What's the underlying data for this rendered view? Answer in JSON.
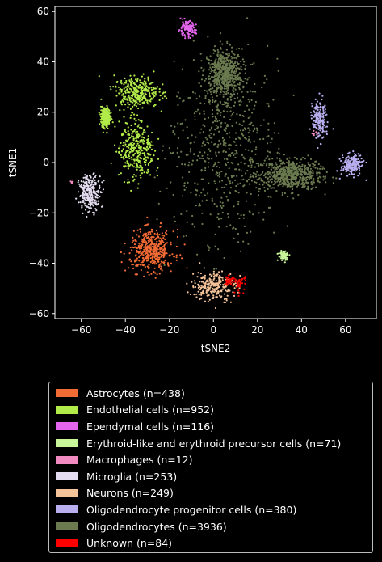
{
  "chart_data": {
    "type": "scatter",
    "xlabel": "tSNE2",
    "ylabel": "tSNE1",
    "xlim": [
      -72,
      74
    ],
    "ylim": [
      -62,
      62
    ],
    "xticks": [
      -60,
      -40,
      -20,
      0,
      20,
      40,
      60
    ],
    "yticks": [
      -60,
      -40,
      -20,
      0,
      20,
      40,
      60
    ],
    "legend_position": "below",
    "series": [
      {
        "name": "Astrocytes (n=438)",
        "color": "#f26b35",
        "n": 438,
        "clusters": [
          {
            "cx": -28,
            "cy": -35,
            "sx": 5,
            "sy": 4
          }
        ]
      },
      {
        "name": "Endothelial cells (n=952)",
        "color": "#b2ec4a",
        "n": 952,
        "clusters": [
          {
            "cx": -35,
            "cy": 5,
            "sx": 4,
            "sy": 6
          },
          {
            "cx": -35,
            "cy": 28,
            "sx": 5,
            "sy": 3
          },
          {
            "cx": -49,
            "cy": 18,
            "sx": 1,
            "sy": 2
          }
        ]
      },
      {
        "name": "Ependymal cells (n=116)",
        "color": "#e566ee",
        "n": 116,
        "clusters": [
          {
            "cx": -12,
            "cy": 53,
            "sx": 2,
            "sy": 1.5
          }
        ]
      },
      {
        "name": "Erythroid-like and erythroid precursor cells (n=71)",
        "color": "#c8f59a",
        "n": 71,
        "clusters": [
          {
            "cx": 32,
            "cy": -37,
            "sx": 1.2,
            "sy": 1
          }
        ]
      },
      {
        "name": "Macrophages (n=12)",
        "color": "#f08ac0",
        "n": 12,
        "clusters": [
          {
            "cx": -64,
            "cy": -8,
            "sx": 0.5,
            "sy": 0.5
          },
          {
            "cx": 46,
            "cy": 12,
            "sx": 1,
            "sy": 1
          }
        ]
      },
      {
        "name": "Microglia (n=253)",
        "color": "#e3dcf0",
        "n": 253,
        "clusters": [
          {
            "cx": -56,
            "cy": -12,
            "sx": 2.5,
            "sy": 3.5
          }
        ]
      },
      {
        "name": "Neurons (n=249)",
        "color": "#f5c399",
        "n": 249,
        "clusters": [
          {
            "cx": 0,
            "cy": -49,
            "sx": 5,
            "sy": 3
          }
        ]
      },
      {
        "name": "Oligodendrocyte progenitor cells (n=380)",
        "color": "#b9aef0",
        "n": 380,
        "clusters": [
          {
            "cx": 48,
            "cy": 17,
            "sx": 1.5,
            "sy": 4
          },
          {
            "cx": 63,
            "cy": -1,
            "sx": 2.5,
            "sy": 2
          }
        ]
      },
      {
        "name": "Oligodendrocytes (n=3936)",
        "color": "#6b7a4f",
        "n": 3936,
        "clusters": [
          {
            "cx": 5,
            "cy": 5,
            "sx": 12,
            "sy": 18
          },
          {
            "cx": 5,
            "cy": 35,
            "sx": 4,
            "sy": 5
          },
          {
            "cx": 35,
            "cy": -5,
            "sx": 7,
            "sy": 3
          }
        ]
      },
      {
        "name": "Unknown (n=84)",
        "color": "#ff0000",
        "n": 84,
        "clusters": [
          {
            "cx": 12,
            "cy": -48,
            "sx": 1.5,
            "sy": 1.5
          },
          {
            "cx": 7,
            "cy": -47,
            "sx": 1,
            "sy": 1
          }
        ]
      }
    ]
  }
}
